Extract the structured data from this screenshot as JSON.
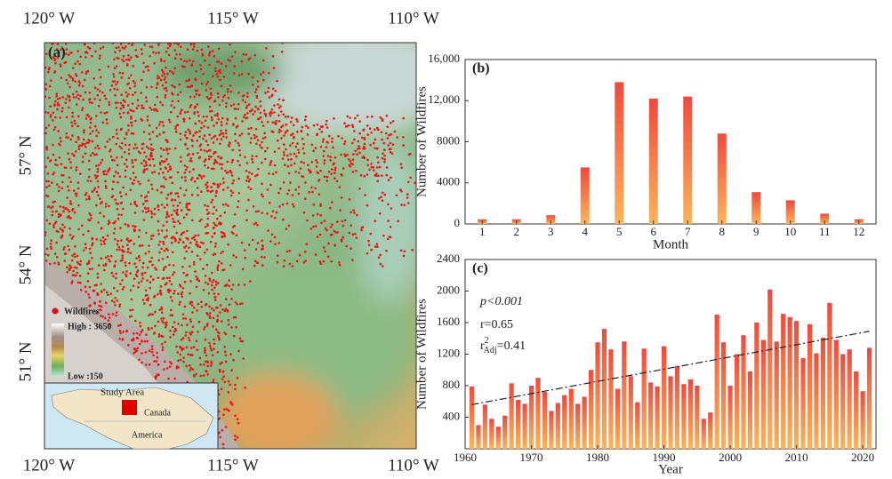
{
  "map": {
    "panel_label": "(a)",
    "top_lon": [
      "120° W",
      "115° W",
      "110° W"
    ],
    "bottom_lon": [
      "120° W",
      "115° W",
      "110° W"
    ],
    "lat": [
      "57° N",
      "54° N",
      "51° N"
    ],
    "legend_fires": "Wildfires",
    "legend_high": "High : 3650",
    "legend_low": "Low :150",
    "inset_title": "Study Area",
    "inset_canada": "Canada",
    "inset_america": "America"
  },
  "chart_data": [
    {
      "type": "bar",
      "panel_label": "(b)",
      "xlabel": "Month",
      "ylabel": "Number of Wildfires",
      "categories": [
        "1",
        "2",
        "3",
        "4",
        "5",
        "6",
        "7",
        "8",
        "9",
        "10",
        "11",
        "12"
      ],
      "values": [
        450,
        450,
        850,
        5500,
        13800,
        12200,
        12400,
        8800,
        3100,
        2300,
        1000,
        450
      ],
      "color_top": "#ef4a3e",
      "color_bottom": "#f9b55c",
      "ylim": [
        0,
        16000
      ],
      "yticks": [
        0,
        4000,
        8000,
        {
          "value": 12000,
          "label": "12,000"
        },
        {
          "value": 16000,
          "label": "16,000"
        }
      ]
    },
    {
      "type": "bar",
      "panel_label": "(c)",
      "xlabel": "Year",
      "ylabel": "Number of Wildfires",
      "x": [
        1961,
        1962,
        1963,
        1964,
        1965,
        1966,
        1967,
        1968,
        1969,
        1970,
        1971,
        1972,
        1973,
        1974,
        1975,
        1976,
        1977,
        1978,
        1979,
        1980,
        1981,
        1982,
        1983,
        1984,
        1985,
        1986,
        1987,
        1988,
        1989,
        1990,
        1991,
        1992,
        1993,
        1994,
        1995,
        1996,
        1997,
        1998,
        1999,
        2000,
        2001,
        2002,
        2003,
        2004,
        2005,
        2006,
        2007,
        2008,
        2009,
        2010,
        2011,
        2012,
        2013,
        2014,
        2015,
        2016,
        2017,
        2018,
        2019,
        2020,
        2021
      ],
      "values": [
        790,
        300,
        560,
        380,
        280,
        420,
        830,
        620,
        570,
        800,
        900,
        720,
        480,
        580,
        680,
        760,
        570,
        660,
        1000,
        1350,
        1520,
        1260,
        760,
        1360,
        920,
        590,
        1270,
        840,
        790,
        1300,
        920,
        1050,
        820,
        880,
        800,
        380,
        460,
        1700,
        1350,
        800,
        1200,
        1440,
        980,
        1600,
        1380,
        2020,
        1360,
        1710,
        1670,
        1620,
        1150,
        1580,
        1210,
        1410,
        1850,
        1380,
        1200,
        1260,
        980,
        730,
        1280
      ],
      "color_top": "#ef4a3e",
      "color_bottom": "#f9b55c",
      "xlim": [
        1960,
        2022
      ],
      "xticks": [
        1960,
        1970,
        1980,
        1990,
        2000,
        2010,
        2020
      ],
      "ylim": [
        0,
        2400
      ],
      "yticks": [
        400,
        800,
        1200,
        1600,
        2000,
        2400
      ],
      "trend": {
        "x": [
          1961,
          2021
        ],
        "values": [
          560,
          1490
        ]
      },
      "annotations": {
        "p": "p<0.001",
        "r": "r=0.65",
        "r2_base": "r",
        "r2_sup": "2",
        "r2_sub": "Adj",
        "r2_value": "=0.41"
      }
    }
  ]
}
